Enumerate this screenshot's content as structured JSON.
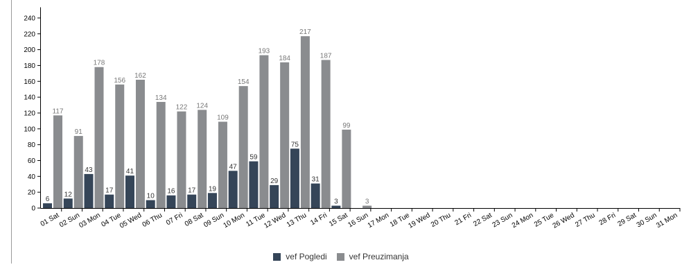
{
  "chart_data": {
    "type": "bar",
    "categories": [
      "01 Sat",
      "02 Sun",
      "03 Mon",
      "04 Tue",
      "05 Wed",
      "06 Thu",
      "07 Fri",
      "08 Sat",
      "09 Sun",
      "10 Mon",
      "11 Tue",
      "12 Wed",
      "13 Thu",
      "14 Fri",
      "15 Sat",
      "16 Sun",
      "17 Mon",
      "18 Tue",
      "19 Wed",
      "20 Thu",
      "21 Fri",
      "22 Sat",
      "23 Sun",
      "24 Mon",
      "25 Tue",
      "26 Wed",
      "27 Thu",
      "28 Fri",
      "29 Sat",
      "30 Sun",
      "31 Mon"
    ],
    "series": [
      {
        "name": "vef Pogledi",
        "color": "#354558",
        "values": [
          6,
          12,
          43,
          17,
          41,
          10,
          16,
          17,
          19,
          47,
          59,
          29,
          75,
          31,
          3,
          0,
          0,
          0,
          0,
          0,
          0,
          0,
          0,
          0,
          0,
          0,
          0,
          0,
          0,
          0,
          0
        ],
        "labels": [
          "6",
          "12",
          "43",
          "17",
          "41",
          "10",
          "16",
          "17",
          "19",
          "47",
          "59",
          "29",
          "75",
          "31",
          "3",
          "",
          "",
          "",
          "",
          "",
          "",
          "",
          "",
          "",
          "",
          "",
          "",
          "",
          "",
          "",
          ""
        ]
      },
      {
        "name": "vef Preuzimanja",
        "color": "#8a8c8f",
        "values": [
          117,
          91,
          178,
          156,
          162,
          134,
          122,
          124,
          109,
          154,
          193,
          184,
          217,
          187,
          99,
          3,
          0,
          0,
          0,
          0,
          0,
          0,
          0,
          0,
          0,
          0,
          0,
          0,
          0,
          0,
          0
        ],
        "labels": [
          "117",
          "91",
          "178",
          "156",
          "162",
          "134",
          "122",
          "124",
          "109",
          "154",
          "193",
          "184",
          "217",
          "187",
          "99",
          "3",
          "",
          "",
          "",
          "",
          "",
          "",
          "",
          "",
          "",
          "",
          "",
          "",
          "",
          "",
          ""
        ]
      }
    ],
    "ylim": [
      0,
      250
    ],
    "yticks": [
      0,
      20,
      40,
      60,
      80,
      100,
      120,
      140,
      160,
      180,
      200,
      220,
      240
    ],
    "ytick_labels": [
      "0",
      "20",
      "40",
      "60",
      "80",
      "100",
      "120",
      "140",
      "160",
      "180",
      "200",
      "220",
      "240"
    ],
    "title": "",
    "xlabel": "",
    "ylabel": "",
    "grid": false,
    "legend_position": "bottom-center"
  }
}
